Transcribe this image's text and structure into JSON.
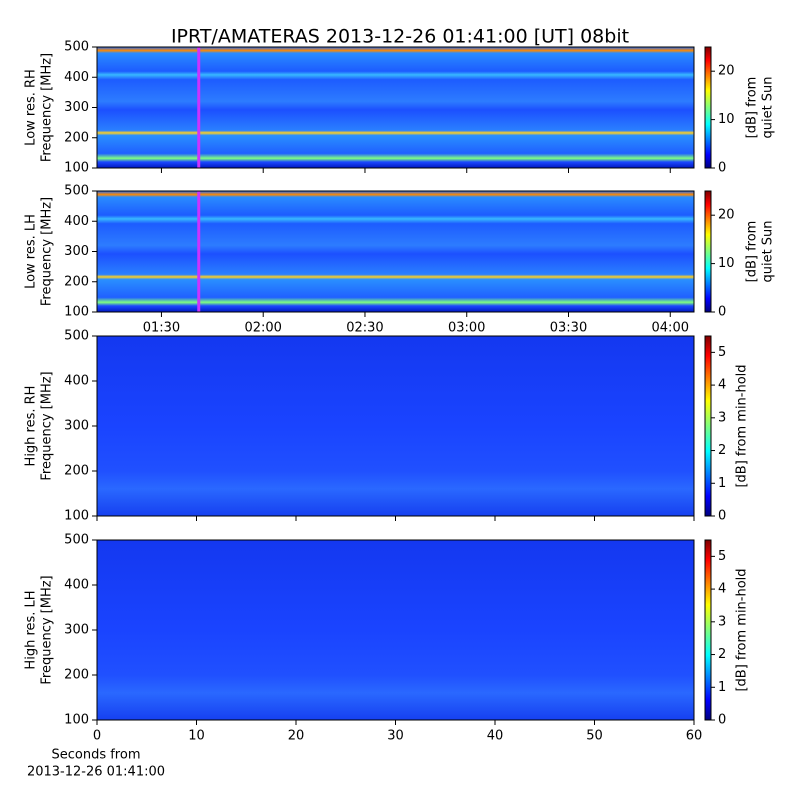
{
  "title": "IPRT/AMATERAS 2013-12-26 01:41:00 [UT]   08bit",
  "chart_data": [
    {
      "type": "heatmap",
      "ylabel": [
        "Low res. RH",
        "Frequency [MHz]"
      ],
      "ylim": [
        100,
        500
      ],
      "yticks": [
        100,
        200,
        300,
        400,
        500
      ],
      "xlim": [
        "01:11",
        "04:07"
      ],
      "xticks": [
        "01:30",
        "02:00",
        "02:30",
        "03:00",
        "03:30",
        "04:00"
      ],
      "show_xtick_labels": false,
      "marker": {
        "x": "01:41",
        "color": "#cc33ff"
      },
      "colormap": "jet",
      "clim": [
        0,
        25
      ],
      "cticks": [
        0,
        10,
        20
      ],
      "colorbar_label": [
        "[dB] from",
        "quiet Sun"
      ]
    },
    {
      "type": "heatmap",
      "ylabel": [
        "Low res. LH",
        "Frequency [MHz]"
      ],
      "ylim": [
        100,
        500
      ],
      "yticks": [
        100,
        200,
        300,
        400,
        500
      ],
      "xlim": [
        "01:11",
        "04:07"
      ],
      "xticks": [
        "01:30",
        "02:00",
        "02:30",
        "03:00",
        "03:30",
        "04:00"
      ],
      "show_xtick_labels": true,
      "marker": {
        "x": "01:41",
        "color": "#cc33ff"
      },
      "colormap": "jet",
      "clim": [
        0,
        25
      ],
      "cticks": [
        0,
        10,
        20
      ],
      "colorbar_label": [
        "[dB] from",
        "quiet Sun"
      ]
    },
    {
      "type": "heatmap",
      "ylabel": [
        "High res. RH",
        "Frequency [MHz]"
      ],
      "ylim": [
        100,
        500
      ],
      "yticks": [
        100,
        200,
        300,
        400,
        500
      ],
      "xlim": [
        0,
        60
      ],
      "xticks": [
        0,
        10,
        20,
        30,
        40,
        50,
        60
      ],
      "show_xtick_labels": false,
      "colormap": "jet",
      "clim": [
        0,
        5.5
      ],
      "cticks": [
        0,
        1,
        2,
        3,
        4,
        5
      ],
      "colorbar_label": [
        "[dB] from min-hold"
      ]
    },
    {
      "type": "heatmap",
      "ylabel": [
        "High res. LH",
        "Frequency [MHz]"
      ],
      "ylim": [
        100,
        500
      ],
      "yticks": [
        100,
        200,
        300,
        400,
        500
      ],
      "xlim": [
        0,
        60
      ],
      "xticks": [
        0,
        10,
        20,
        30,
        40,
        50,
        60
      ],
      "show_xtick_labels": true,
      "xlabel": [
        "Seconds from",
        "2013-12-26 01:41:00"
      ],
      "colormap": "jet",
      "clim": [
        0,
        5.5
      ],
      "cticks": [
        0,
        1,
        2,
        3,
        4,
        5
      ],
      "colorbar_label": [
        "[dB] from min-hold"
      ]
    }
  ]
}
